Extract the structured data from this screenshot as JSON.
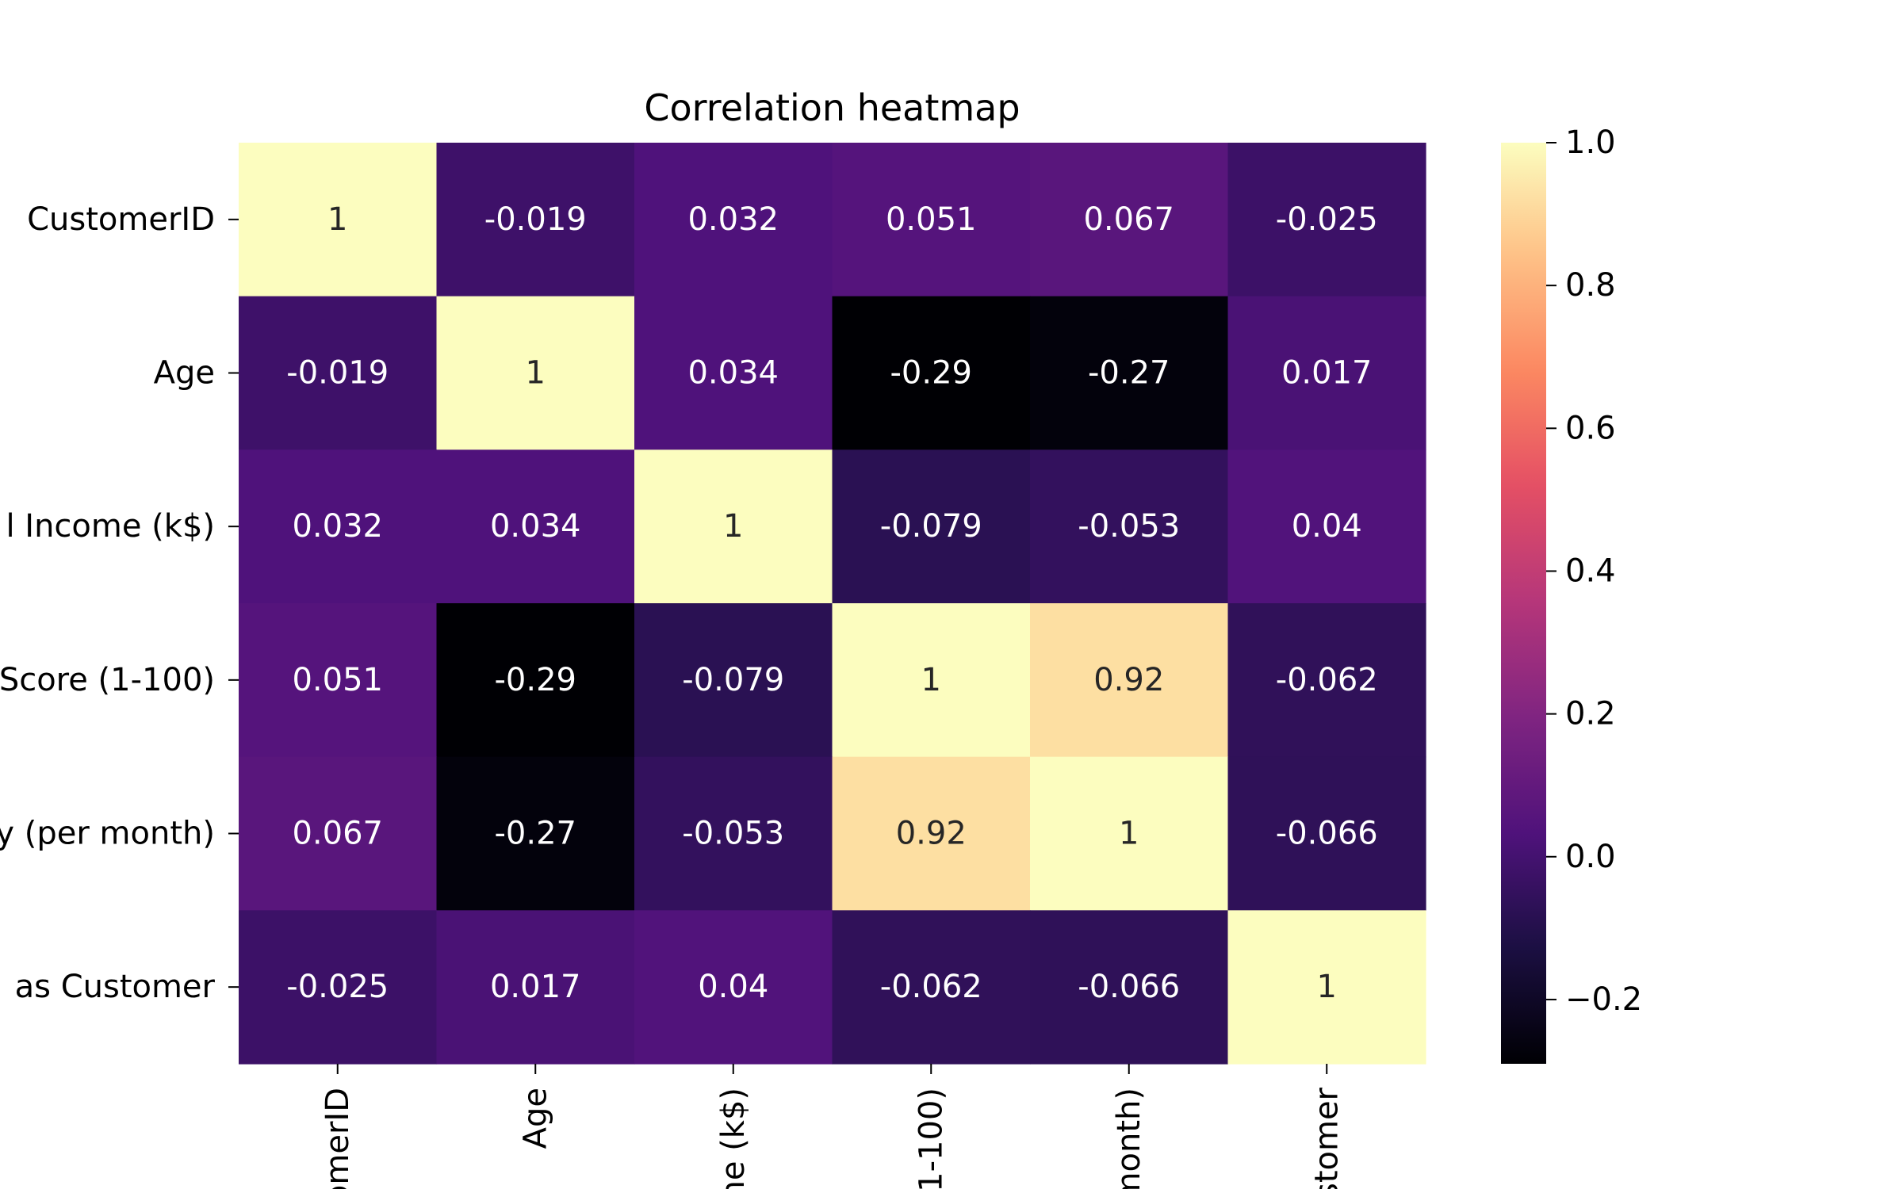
{
  "chart_data": {
    "type": "heatmap",
    "title": "Correlation heatmap",
    "row_tick_labels": [
      "CustomerID",
      "Age",
      "l Income (k$)",
      "Score (1-100)",
      "y (per month)",
      "as Customer"
    ],
    "col_tick_labels": [
      "omerID",
      "Age",
      "ne (k$)",
      "1-100)",
      "month)",
      "stomer"
    ],
    "values": [
      [
        1,
        -0.019,
        0.032,
        0.051,
        0.067,
        -0.025
      ],
      [
        -0.019,
        1,
        0.034,
        -0.29,
        -0.27,
        0.017
      ],
      [
        0.032,
        0.034,
        1,
        -0.079,
        -0.053,
        0.04
      ],
      [
        0.051,
        -0.29,
        -0.079,
        1,
        0.92,
        -0.062
      ],
      [
        0.067,
        -0.27,
        -0.053,
        0.92,
        1,
        -0.066
      ],
      [
        -0.025,
        0.017,
        0.04,
        -0.062,
        -0.066,
        1
      ]
    ],
    "value_labels": [
      [
        "1",
        "-0.019",
        "0.032",
        "0.051",
        "0.067",
        "-0.025"
      ],
      [
        "-0.019",
        "1",
        "0.034",
        "-0.29",
        "-0.27",
        "0.017"
      ],
      [
        "0.032",
        "0.034",
        "1",
        "-0.079",
        "-0.053",
        "0.04"
      ],
      [
        "0.051",
        "-0.29",
        "-0.079",
        "1",
        "0.92",
        "-0.062"
      ],
      [
        "0.067",
        "-0.27",
        "-0.053",
        "0.92",
        "1",
        "-0.066"
      ],
      [
        "-0.025",
        "0.017",
        "0.04",
        "-0.062",
        "-0.066",
        "1"
      ]
    ],
    "colormap": "magma",
    "vmin": -0.29,
    "vmax": 1.0,
    "colorbar_ticks": [
      1.0,
      0.8,
      0.6,
      0.4,
      0.2,
      0.0,
      -0.2
    ],
    "colorbar_tick_labels": [
      "1.0",
      "0.8",
      "0.6",
      "0.4",
      "0.2",
      "0.0",
      "−0.2"
    ],
    "colorbar_placement": "right",
    "grid": false
  }
}
